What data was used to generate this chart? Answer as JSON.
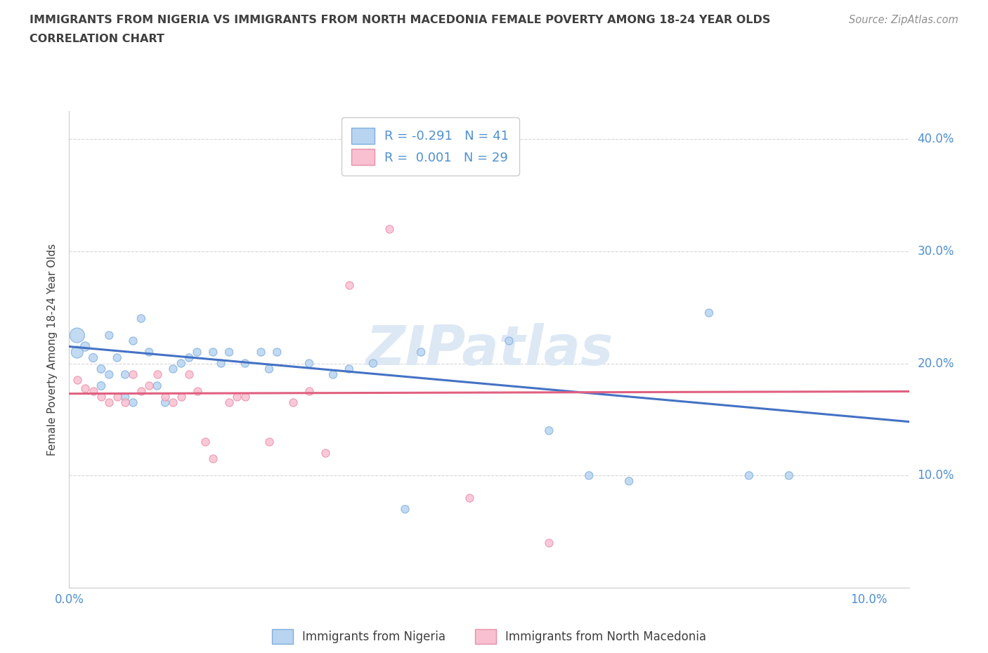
{
  "title_line1": "IMMIGRANTS FROM NIGERIA VS IMMIGRANTS FROM NORTH MACEDONIA FEMALE POVERTY AMONG 18-24 YEAR OLDS",
  "title_line2": "CORRELATION CHART",
  "source": "Source: ZipAtlas.com",
  "ylabel": "Female Poverty Among 18-24 Year Olds",
  "xlim": [
    0.0,
    0.105
  ],
  "ylim": [
    0.0,
    0.425
  ],
  "R_nigeria": -0.291,
  "N_nigeria": 41,
  "R_macedonia": 0.001,
  "N_macedonia": 29,
  "nigeria_color": "#b8d4f0",
  "nigeria_edge": "#80aedd",
  "macedonia_color": "#f8c0d0",
  "macedonia_edge": "#e890a8",
  "trend_blue": "#4472c4",
  "trend_pink": "#e06080",
  "axis_tick_color": "#5090d0",
  "grid_color": "#d8d8d8",
  "background_color": "#ffffff",
  "text_color": "#404040",
  "source_color": "#909090",
  "nigeria_x": [
    0.001,
    0.001,
    0.002,
    0.003,
    0.004,
    0.004,
    0.005,
    0.005,
    0.006,
    0.007,
    0.007,
    0.008,
    0.008,
    0.009,
    0.01,
    0.011,
    0.012,
    0.013,
    0.014,
    0.015,
    0.016,
    0.018,
    0.019,
    0.02,
    0.022,
    0.024,
    0.025,
    0.026,
    0.03,
    0.033,
    0.035,
    0.038,
    0.042,
    0.044,
    0.055,
    0.06,
    0.065,
    0.07,
    0.08,
    0.085,
    0.09
  ],
  "nigeria_y": [
    0.225,
    0.21,
    0.215,
    0.205,
    0.195,
    0.18,
    0.19,
    0.225,
    0.205,
    0.17,
    0.19,
    0.165,
    0.22,
    0.24,
    0.21,
    0.18,
    0.165,
    0.195,
    0.2,
    0.205,
    0.21,
    0.21,
    0.2,
    0.21,
    0.2,
    0.21,
    0.195,
    0.21,
    0.2,
    0.19,
    0.195,
    0.2,
    0.07,
    0.21,
    0.22,
    0.14,
    0.1,
    0.095,
    0.245,
    0.1,
    0.1
  ],
  "nigeria_sizes": [
    230,
    150,
    90,
    75,
    70,
    70,
    65,
    65,
    65,
    65,
    65,
    65,
    65,
    65,
    65,
    65,
    65,
    65,
    65,
    65,
    65,
    65,
    65,
    65,
    65,
    65,
    65,
    65,
    65,
    65,
    65,
    65,
    65,
    65,
    65,
    65,
    65,
    65,
    65,
    65,
    65
  ],
  "macedonia_x": [
    0.001,
    0.002,
    0.003,
    0.004,
    0.005,
    0.006,
    0.007,
    0.008,
    0.009,
    0.01,
    0.011,
    0.012,
    0.013,
    0.014,
    0.015,
    0.016,
    0.017,
    0.018,
    0.02,
    0.021,
    0.022,
    0.025,
    0.028,
    0.03,
    0.032,
    0.035,
    0.04,
    0.05,
    0.06
  ],
  "macedonia_y": [
    0.185,
    0.178,
    0.175,
    0.17,
    0.165,
    0.17,
    0.165,
    0.19,
    0.175,
    0.18,
    0.19,
    0.17,
    0.165,
    0.17,
    0.19,
    0.175,
    0.13,
    0.115,
    0.165,
    0.17,
    0.17,
    0.13,
    0.165,
    0.175,
    0.12,
    0.27,
    0.32,
    0.08,
    0.04
  ],
  "blue_trend_x0": 0.0,
  "blue_trend_y0": 0.215,
  "blue_trend_x1": 0.105,
  "blue_trend_y1": 0.148,
  "pink_trend_x0": 0.0,
  "pink_trend_y0": 0.173,
  "pink_trend_x1": 0.105,
  "pink_trend_y1": 0.175,
  "watermark": "ZIPatlas",
  "legend1_label": "Immigrants from Nigeria",
  "legend2_label": "Immigrants from North Macedonia"
}
